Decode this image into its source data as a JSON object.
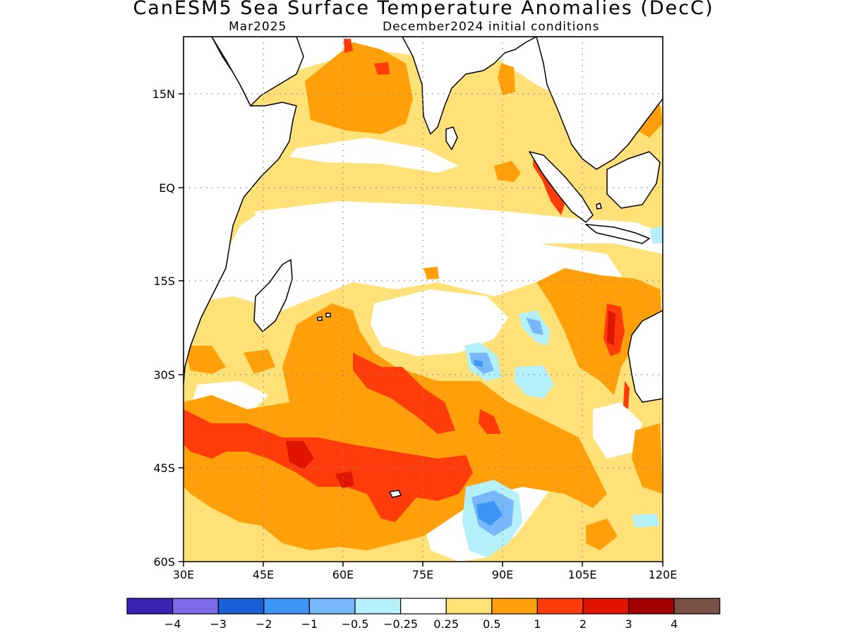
{
  "title": "CanESM5 Sea Surface Temperature Anomalies (DecC)",
  "valid_month": "Mar2025",
  "init_conditions": "December2024 initial conditions",
  "map": {
    "lon_range": [
      30,
      120
    ],
    "lat_range": [
      -60,
      24
    ],
    "lon_ticks": [
      "30E",
      "45E",
      "60E",
      "75E",
      "90E",
      "105E",
      "120E"
    ],
    "lat_ticks": [
      "15N",
      "EQ",
      "15S",
      "30S",
      "45S",
      "60S"
    ],
    "gridlines": true,
    "land_color": "#ffffff",
    "coastline_color": "#000000"
  },
  "colorbar": {
    "colors": [
      "#3a21b4",
      "#7d6bea",
      "#1a5fd6",
      "#3c96f6",
      "#78b8fa",
      "#b4f0fa",
      "#ffffff",
      "#ffe178",
      "#ffa00a",
      "#ff3c0a",
      "#e11400",
      "#a50000",
      "#7a4f44"
    ],
    "labels": [
      "−4",
      "−3",
      "−2",
      "−1",
      "−0.5",
      "−0.25",
      "0.25",
      "0.5",
      "1",
      "2",
      "3",
      "4"
    ]
  }
}
